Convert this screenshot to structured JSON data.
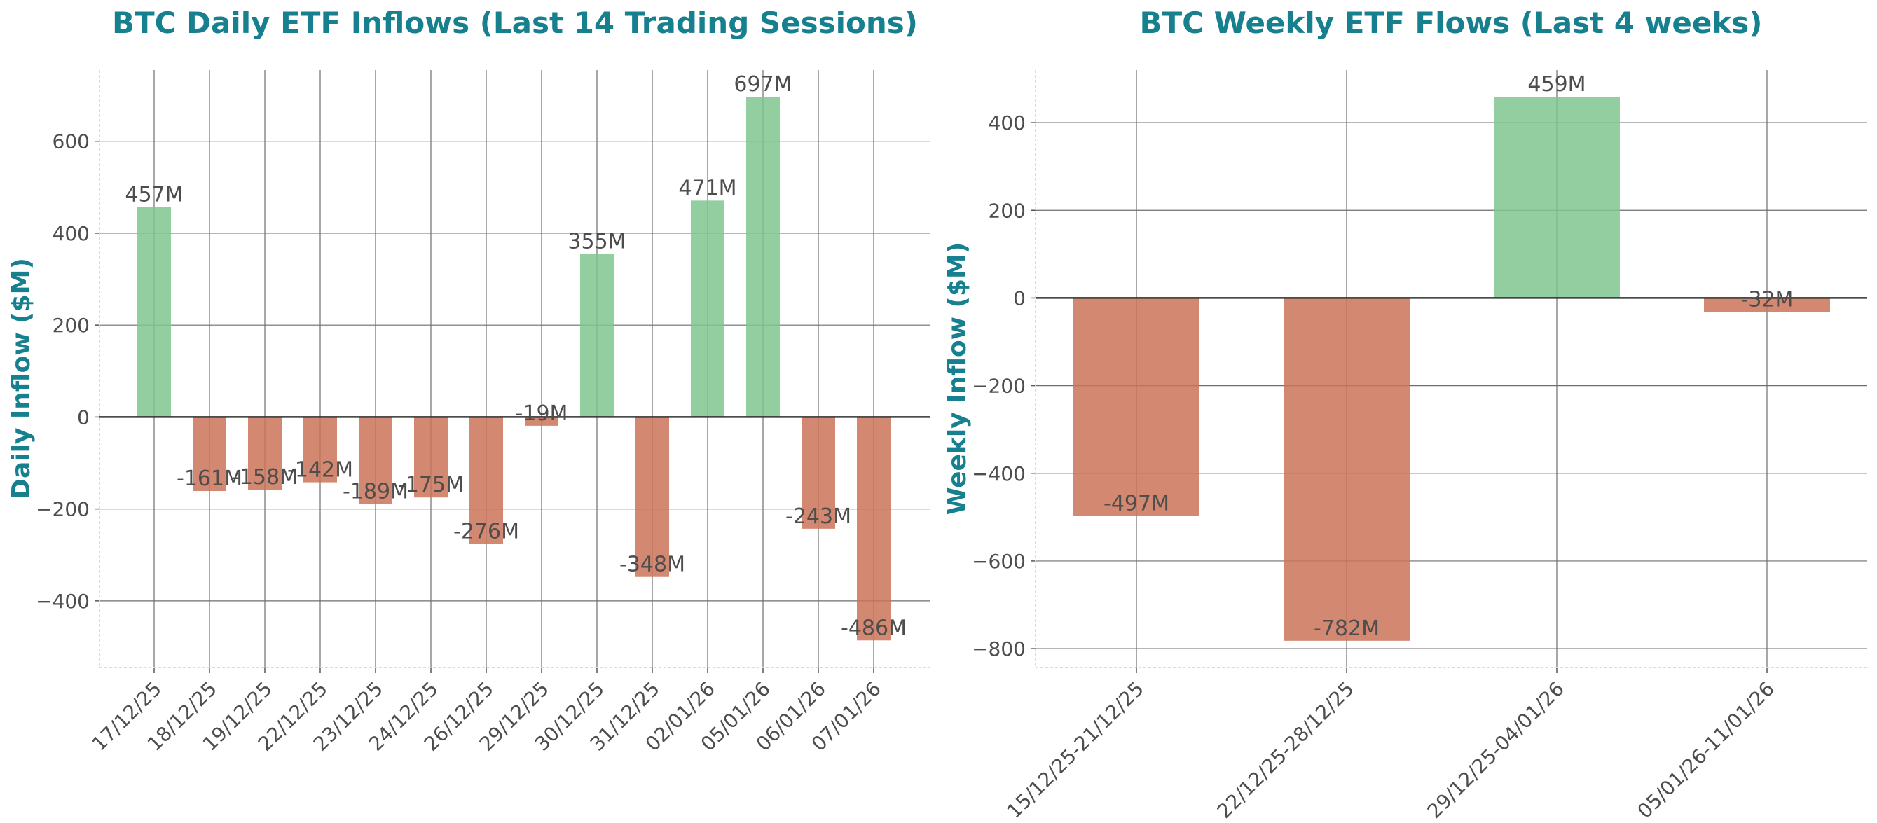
{
  "colors": {
    "positive": "#7fc58f",
    "negative": "#cb7358",
    "title": "#17808f",
    "text": "#4d4d4d"
  },
  "chart_data": [
    {
      "type": "bar",
      "title": "BTC Daily ETF Inflows (Last 14 Trading Sessions)",
      "xlabel": "",
      "ylabel": "Daily Inflow ($M)",
      "categories": [
        "17/12/25",
        "18/12/25",
        "19/12/25",
        "22/12/25",
        "23/12/25",
        "24/12/25",
        "26/12/25",
        "29/12/25",
        "30/12/25",
        "31/12/25",
        "02/01/26",
        "05/01/26",
        "06/01/26",
        "07/01/26"
      ],
      "values": [
        457,
        -161,
        -158,
        -142,
        -189,
        -175,
        -276,
        -19,
        355,
        -348,
        471,
        697,
        -243,
        -486
      ],
      "labels": [
        "457M",
        "-161M",
        "-158M",
        "-142M",
        "-189M",
        "-175M",
        "-276M",
        "-19M",
        "355M",
        "-348M",
        "471M",
        "697M",
        "-243M",
        "-486M"
      ],
      "yticks": [
        -400,
        -200,
        0,
        200,
        400,
        600
      ],
      "ytick_labels": [
        "−400",
        "−200",
        "0",
        "200",
        "400",
        "600"
      ],
      "ylim": [
        -545,
        755
      ],
      "grid": true
    },
    {
      "type": "bar",
      "title": "BTC Weekly ETF Flows (Last 4 weeks)",
      "xlabel": "",
      "ylabel": "Weekly Inflow ($M)",
      "categories": [
        "15/12/25-21/12/25",
        "22/12/25-28/12/25",
        "29/12/25-04/01/26",
        "05/01/26-11/01/26"
      ],
      "values": [
        -497,
        -782,
        459,
        -32
      ],
      "labels": [
        "-497M",
        "-782M",
        "459M",
        "-32M"
      ],
      "yticks": [
        -800,
        -600,
        -400,
        -200,
        0,
        200,
        400
      ],
      "ytick_labels": [
        "−800",
        "−600",
        "−400",
        "−200",
        "0",
        "200",
        "400"
      ],
      "ylim": [
        -843,
        520
      ],
      "grid": true
    }
  ]
}
